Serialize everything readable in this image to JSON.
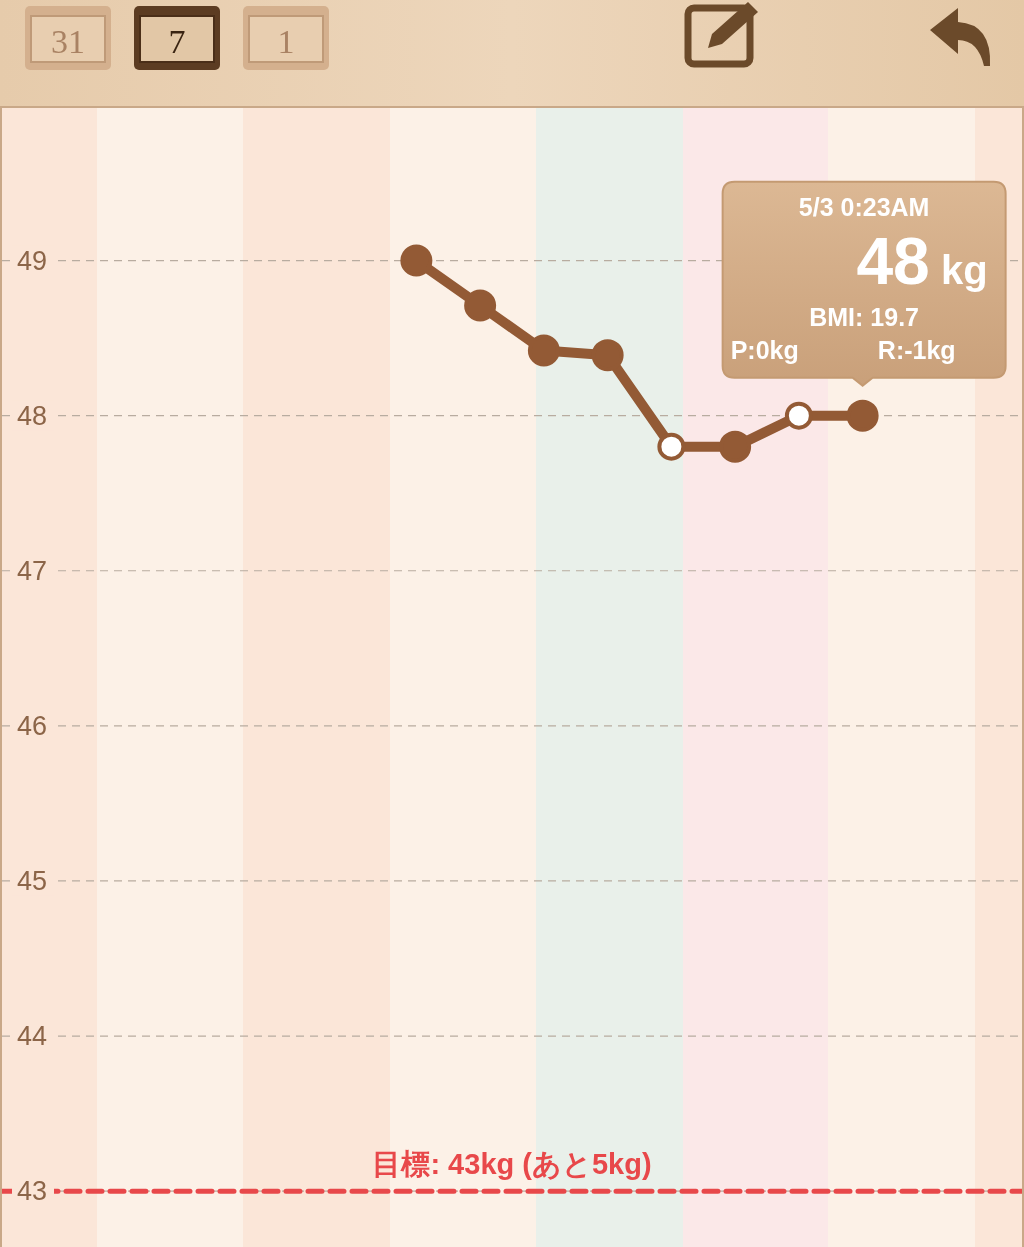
{
  "chart_data": {
    "type": "line",
    "categories": [
      null,
      null,
      null,
      null,
      null,
      null,
      null,
      null,
      null,
      null,
      null,
      null,
      null,
      null,
      null,
      null
    ],
    "ylim": [
      42.64,
      49.99
    ],
    "yticks": [
      43,
      44,
      45,
      46,
      47,
      48,
      49
    ],
    "tick_labels": "y",
    "grid": "y",
    "marker": "circle",
    "line_style": "solid",
    "series": [
      {
        "color": "#935a35",
        "values": [
          null,
          null,
          null,
          null,
          null,
          null,
          49,
          48.71,
          48.42,
          48.39,
          47.8,
          47.8,
          48,
          48,
          null,
          null
        ],
        "colors": [
          null,
          null,
          null,
          null,
          null,
          null,
          "#935a35",
          "#935a35",
          "#935a35",
          "#935a35",
          "#ffffff",
          "#935a35",
          "#ffffff",
          "#935a35",
          null,
          null
        ]
      }
    ],
    "ref_lines": [
      {
        "axis": "y",
        "value": 43,
        "label": "目標: 43kg (あと5kg)",
        "color": "#e8484a",
        "line_style": "dashed"
      }
    ],
    "annotations": [
      "5/3 0:23AM",
      "48 kg",
      "BMI: 19.7",
      "P:0kg",
      "R:-1kg",
      "31",
      "7",
      "1"
    ]
  }
}
